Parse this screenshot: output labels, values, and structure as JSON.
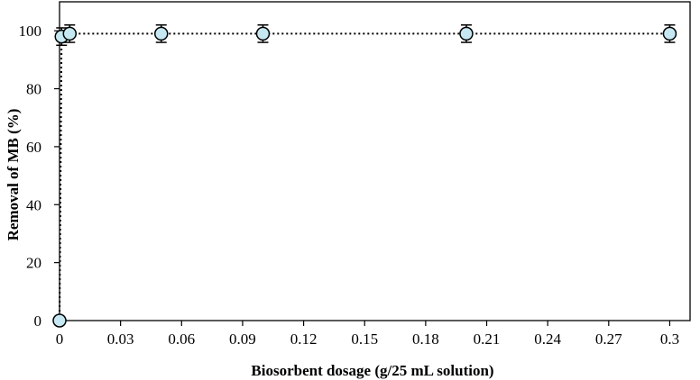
{
  "chart_data": {
    "type": "scatter",
    "title": "",
    "xlabel": "Biosorbent dosage (g/25 mL solution)",
    "ylabel": "Removal of MB (%)",
    "xlim": [
      0,
      0.31
    ],
    "ylim": [
      0,
      110
    ],
    "xticks": [
      0,
      0.03,
      0.06,
      0.09,
      0.12,
      0.15,
      0.18,
      0.21,
      0.24,
      0.27,
      0.3
    ],
    "xtick_labels": [
      "0",
      "0.03",
      "0.06",
      "0.09",
      "0.12",
      "0.15",
      "0.18",
      "0.21",
      "0.24",
      "0.27",
      "0.3"
    ],
    "yticks": [
      0,
      20,
      40,
      60,
      80,
      100
    ],
    "ytick_labels": [
      "0",
      "20",
      "40",
      "60",
      "80",
      "100"
    ],
    "grid": false,
    "legend": "none",
    "line_style": "dotted",
    "marker": "circle",
    "marker_color": "#c6e8f2",
    "series": [
      {
        "x": [
          0,
          0.001,
          0.005,
          0.05,
          0.1,
          0.2,
          0.3
        ],
        "y": [
          0,
          98,
          99,
          99,
          99,
          99,
          99
        ],
        "yerr": [
          0,
          3,
          3,
          3,
          3,
          3,
          3
        ]
      }
    ]
  }
}
